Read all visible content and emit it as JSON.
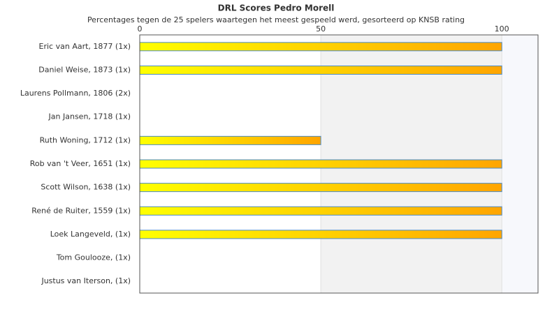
{
  "chart_data": {
    "type": "bar",
    "orientation": "horizontal",
    "title": "DRL Scores Pedro Morell",
    "subtitle": "Percentages tegen de 25 spelers waartegen het meest gespeeld werd, gesorteerd op KNSB rating",
    "categories": [
      "Eric van Aart, 1877 (1x)",
      "Daniel Weise, 1873 (1x)",
      "Laurens Pollmann, 1806 (2x)",
      "Jan Jansen, 1718 (1x)",
      "Ruth Woning, 1712 (1x)",
      "Rob van 't Veer, 1651 (1x)",
      "Scott Wilson, 1638 (1x)",
      "René de Ruiter, 1559 (1x)",
      "Loek Langeveld,  (1x)",
      "Tom Goulooze,  (1x)",
      "Justus van Iterson,  (1x)"
    ],
    "values": [
      100,
      100,
      0,
      0,
      50,
      100,
      100,
      100,
      100,
      0,
      0
    ],
    "color": [
      "#ffff00",
      "#ffa500"
    ],
    "xlim": [
      0,
      110
    ],
    "xticks": [
      0,
      50,
      100
    ]
  }
}
